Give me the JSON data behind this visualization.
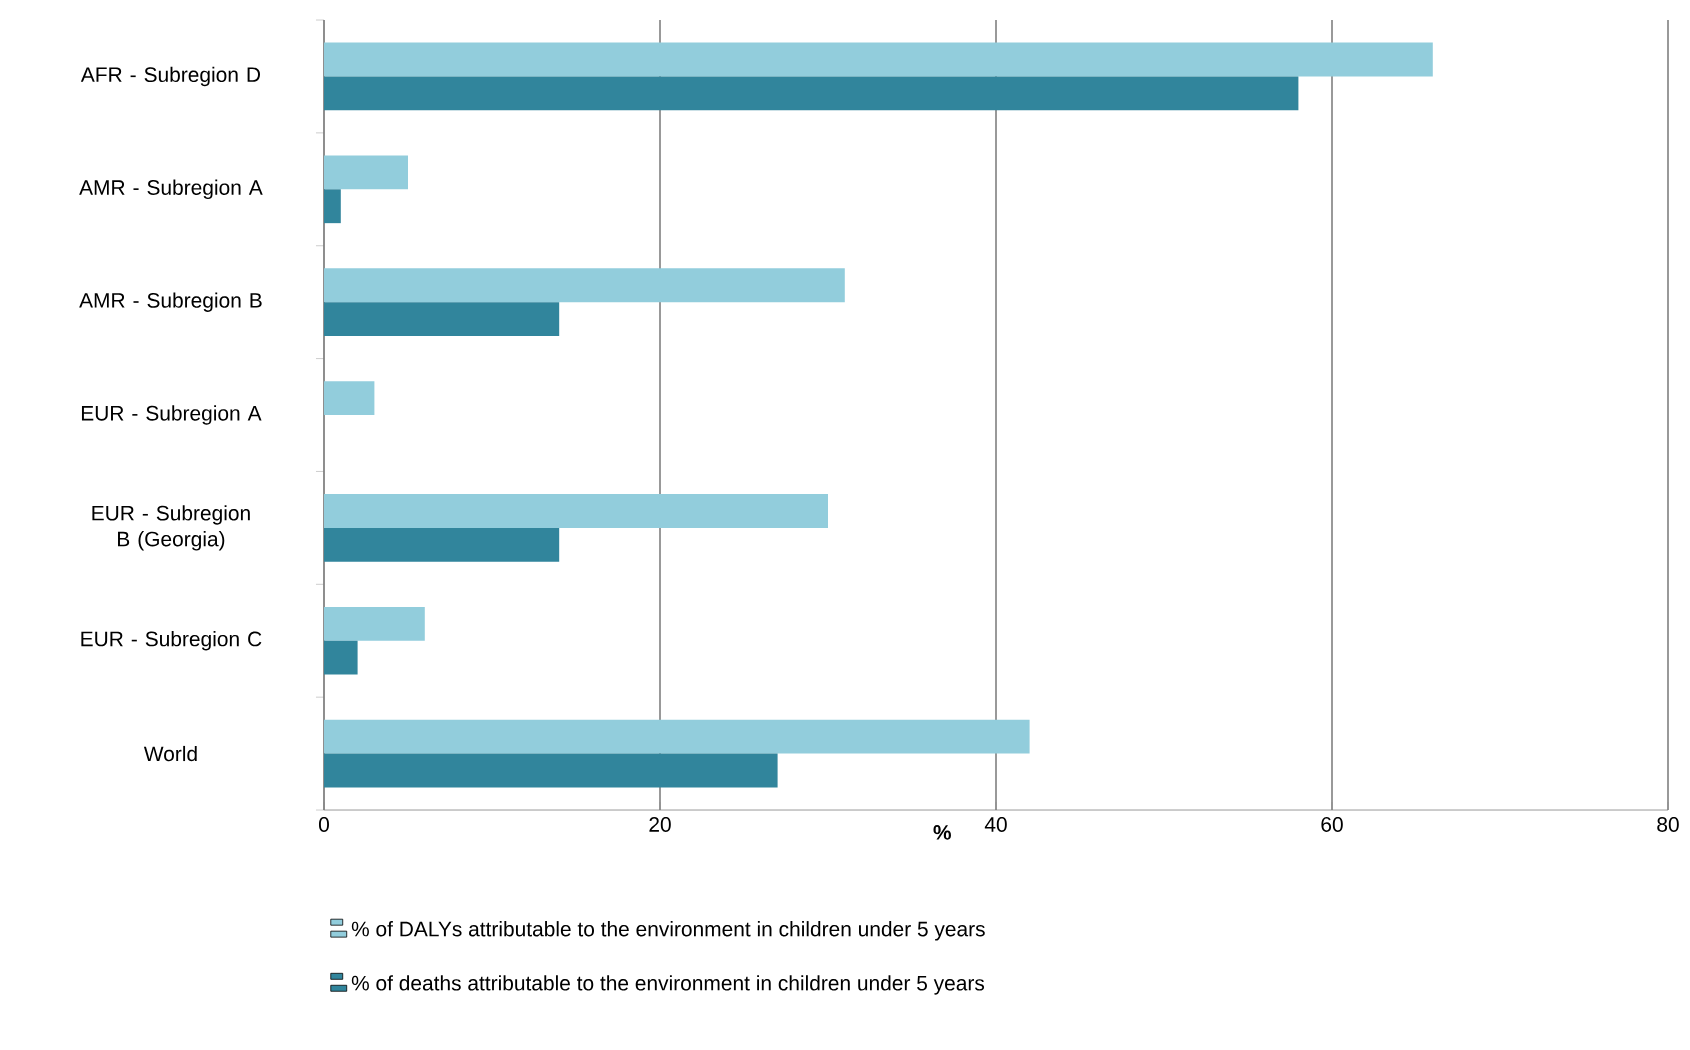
{
  "chart_data": {
    "type": "bar",
    "orientation": "horizontal",
    "categories": [
      "AFR - Subregion D",
      "AMR - Subregion A",
      "AMR - Subregion B",
      "EUR - Subregion A",
      "EUR - Subregion B (Georgia)",
      "EUR - Subregion C",
      "World"
    ],
    "series": [
      {
        "name": "% of DALYs attributable  to the environment in children under 5 years",
        "color": "#92cddc",
        "values": [
          66,
          5,
          31,
          3,
          30,
          6,
          42
        ]
      },
      {
        "name": "% of deaths attributable  to the environment in children under 5 years",
        "color": "#31859c",
        "values": [
          58,
          1,
          14,
          null,
          14,
          2,
          27
        ]
      }
    ],
    "xlabel": "%",
    "xlim": [
      0,
      80
    ],
    "xticks": [
      0,
      20,
      40,
      60,
      80
    ],
    "grid": "x",
    "legend": "bottom"
  }
}
